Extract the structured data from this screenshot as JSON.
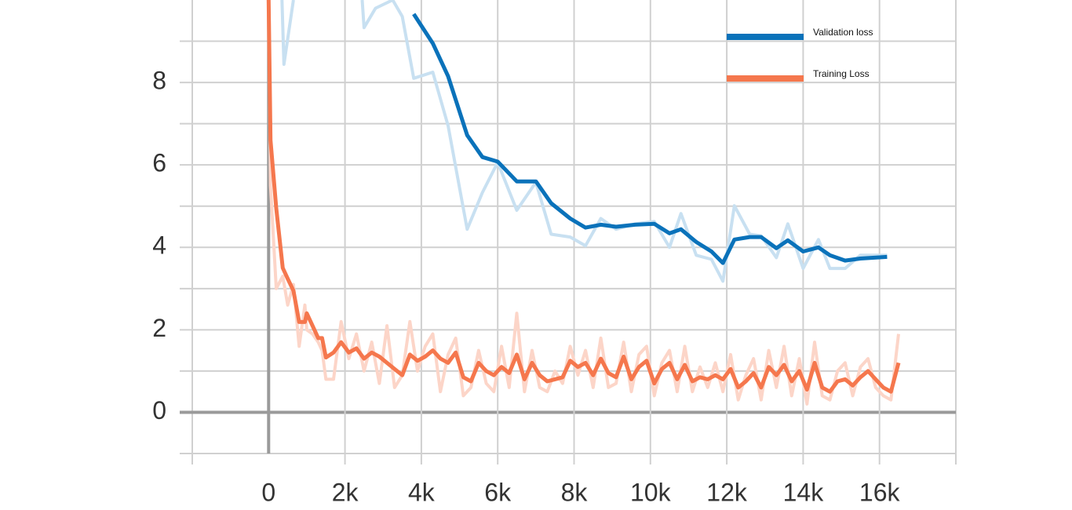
{
  "chart_data": {
    "type": "line",
    "xlim": [
      -2000,
      18000
    ],
    "ylim": [
      -1,
      10
    ],
    "xticks": [
      0,
      {
        "value": 2000,
        "label": "2k"
      },
      {
        "value": 4000,
        "label": "4k"
      },
      {
        "value": 6000,
        "label": "6k"
      },
      {
        "value": 8000,
        "label": "8k"
      },
      {
        "value": 10000,
        "label": "10k"
      },
      {
        "value": 12000,
        "label": "12k"
      },
      {
        "value": 14000,
        "label": "14k"
      },
      {
        "value": 16000,
        "label": "16k"
      }
    ],
    "yticks": [
      0,
      2,
      4,
      6,
      8
    ],
    "yticks_minor": [
      1,
      3,
      5,
      7,
      9
    ],
    "grid": true,
    "legend": "upper right",
    "series": [
      {
        "name": "Validation loss",
        "color": "#0a72ba",
        "raw_color": "#c8e0f1",
        "x": [
          350,
          400,
          650,
          1500,
          2450,
          2500,
          2800,
          3250,
          3500,
          3800,
          4300,
          4700,
          5200,
          5600,
          6000,
          6500,
          7000,
          7400,
          7900,
          8300,
          8700,
          9100,
          9600,
          10100,
          10500,
          10800,
          11200,
          11600,
          11900,
          12200,
          12600,
          12900,
          13300,
          13600,
          14000,
          14400,
          14700,
          15100,
          15500,
          16200
        ],
        "values": [
          null,
          null,
          null,
          null,
          null,
          null,
          null,
          null,
          null,
          9.66,
          8.95,
          8.15,
          6.72,
          6.19,
          6.08,
          5.6,
          5.6,
          5.07,
          4.7,
          4.48,
          4.55,
          4.5,
          4.55,
          4.57,
          4.34,
          4.44,
          4.13,
          3.9,
          3.62,
          4.19,
          4.25,
          4.25,
          3.98,
          4.17,
          3.9,
          4.0,
          3.81,
          3.68,
          3.73,
          3.77
        ],
        "raw_values": [
          10,
          8.44,
          10,
          null,
          10,
          9.33,
          9.8,
          10,
          9.6,
          8.1,
          8.25,
          6.95,
          4.44,
          5.33,
          6.06,
          4.9,
          5.58,
          4.32,
          4.25,
          4.04,
          4.7,
          4.44,
          4.57,
          4.63,
          4.0,
          4.82,
          3.81,
          3.71,
          3.18,
          5.01,
          4.32,
          4.28,
          3.75,
          4.57,
          3.49,
          4.19,
          3.49,
          3.49,
          3.81,
          3.81
        ]
      },
      {
        "name": "Training Loss",
        "color": "#f5774d",
        "raw_color": "#fcd5c8",
        "x": [
          0,
          50,
          200,
          370,
          500,
          650,
          800,
          950,
          1000,
          1150,
          1300,
          1400,
          1500,
          1700,
          1900,
          2100,
          2300,
          2500,
          2700,
          2900,
          3100,
          3300,
          3500,
          3700,
          3900,
          4100,
          4300,
          4500,
          4700,
          4900,
          5100,
          5300,
          5500,
          5700,
          5900,
          6100,
          6300,
          6500,
          6700,
          6900,
          7100,
          7300,
          7500,
          7700,
          7900,
          8100,
          8300,
          8500,
          8700,
          8900,
          9100,
          9300,
          9500,
          9700,
          9900,
          10100,
          10300,
          10500,
          10700,
          10900,
          11100,
          11300,
          11500,
          11700,
          11900,
          12100,
          12300,
          12500,
          12700,
          12900,
          13100,
          13300,
          13500,
          13700,
          13900,
          14100,
          14300,
          14500,
          14700,
          14900,
          15100,
          15300,
          15500,
          15700,
          15900,
          16100,
          16300,
          16500
        ],
        "values": [
          10,
          6.6,
          4.95,
          3.5,
          3.24,
          2.95,
          2.19,
          2.19,
          2.4,
          2.1,
          1.8,
          1.8,
          1.33,
          1.45,
          1.7,
          1.45,
          1.55,
          1.3,
          1.45,
          1.35,
          1.2,
          1.05,
          0.9,
          1.4,
          1.25,
          1.35,
          1.5,
          1.3,
          1.2,
          1.45,
          0.85,
          0.75,
          1.2,
          1.0,
          0.9,
          1.1,
          0.95,
          1.4,
          0.8,
          1.2,
          0.9,
          0.75,
          0.8,
          0.85,
          1.25,
          1.1,
          1.2,
          0.9,
          1.3,
          0.95,
          0.85,
          1.35,
          0.8,
          1.1,
          1.25,
          0.7,
          1.05,
          1.2,
          0.8,
          1.15,
          0.75,
          0.85,
          0.8,
          0.9,
          0.8,
          1.05,
          0.6,
          0.75,
          0.95,
          0.6,
          1.1,
          0.9,
          1.15,
          0.75,
          1.0,
          0.55,
          1.2,
          0.6,
          0.5,
          0.75,
          0.8,
          0.65,
          0.85,
          1.0,
          0.8,
          0.6,
          0.5,
          1.2
        ],
        "raw_values": [
          10,
          5.5,
          3.0,
          3.3,
          2.6,
          3.1,
          1.6,
          2.6,
          2.0,
          1.9,
          1.7,
          1.5,
          0.8,
          0.8,
          2.2,
          1.3,
          1.9,
          1.0,
          1.7,
          0.7,
          2.1,
          0.6,
          0.9,
          2.2,
          1.0,
          1.6,
          1.9,
          0.5,
          1.4,
          1.8,
          0.4,
          0.6,
          1.5,
          0.7,
          0.5,
          1.6,
          0.6,
          2.4,
          0.5,
          1.5,
          0.6,
          0.5,
          1.0,
          0.7,
          1.6,
          0.9,
          1.5,
          0.6,
          1.8,
          0.6,
          0.7,
          1.7,
          0.5,
          1.4,
          1.6,
          0.4,
          1.2,
          1.5,
          0.5,
          1.6,
          0.5,
          1.1,
          0.6,
          1.2,
          0.5,
          1.4,
          0.3,
          0.9,
          1.3,
          0.3,
          1.5,
          0.6,
          1.6,
          0.4,
          1.3,
          0.2,
          1.7,
          0.4,
          0.3,
          1.0,
          1.2,
          0.4,
          1.1,
          1.3,
          0.6,
          0.4,
          0.3,
          1.9
        ]
      }
    ]
  }
}
